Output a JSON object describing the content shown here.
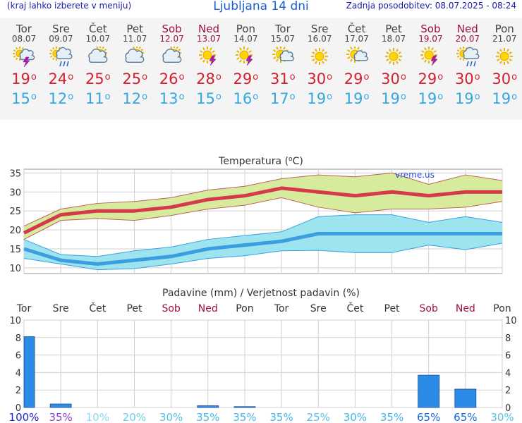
{
  "header": {
    "left_note": "(kraj lahko izberete v meniju)",
    "title": "Ljubljana 14 dni",
    "update_label": "Zadnja posodobitev: 08.07.2025 - 08:24"
  },
  "days": [
    {
      "name": "Tor",
      "date": "08.07",
      "icon": "sun-cloud-storm-icon",
      "tmax": "19",
      "tmin": "15",
      "weekend": false
    },
    {
      "name": "Sre",
      "date": "09.07",
      "icon": "sun-cloud-rain-icon",
      "tmax": "24",
      "tmin": "12",
      "weekend": false
    },
    {
      "name": "Čet",
      "date": "10.07",
      "icon": "sun-cloud-icon",
      "tmax": "25",
      "tmin": "11",
      "weekend": false
    },
    {
      "name": "Pet",
      "date": "11.07",
      "icon": "sun-cloud-icon",
      "tmax": "25",
      "tmin": "12",
      "weekend": false
    },
    {
      "name": "Sob",
      "date": "12.07",
      "icon": "sun-cloud-icon",
      "tmax": "26",
      "tmin": "13",
      "weekend": true
    },
    {
      "name": "Ned",
      "date": "13.07",
      "icon": "sun-storm-icon",
      "tmax": "28",
      "tmin": "15",
      "weekend": true
    },
    {
      "name": "Pon",
      "date": "14.07",
      "icon": "sun-storm-icon",
      "tmax": "29",
      "tmin": "16",
      "weekend": false
    },
    {
      "name": "Tor",
      "date": "15.07",
      "icon": "sun-small-cloud-icon",
      "tmax": "31",
      "tmin": "17",
      "weekend": false
    },
    {
      "name": "Sre",
      "date": "16.07",
      "icon": "sun-icon",
      "tmax": "30",
      "tmin": "19",
      "weekend": false
    },
    {
      "name": "Čet",
      "date": "17.07",
      "icon": "sun-small-cloud-icon",
      "tmax": "29",
      "tmin": "19",
      "weekend": false
    },
    {
      "name": "Pet",
      "date": "18.07",
      "icon": "sun-icon",
      "tmax": "30",
      "tmin": "19",
      "weekend": false
    },
    {
      "name": "Sob",
      "date": "19.07",
      "icon": "sun-storm-icon",
      "tmax": "29",
      "tmin": "19",
      "weekend": true
    },
    {
      "name": "Ned",
      "date": "20.07",
      "icon": "sun-cloud-rain-icon",
      "tmax": "30",
      "tmin": "19",
      "weekend": true
    },
    {
      "name": "Pon",
      "date": "21.07",
      "icon": "sun-icon",
      "tmax": "30",
      "tmin": "19",
      "weekend": false
    }
  ],
  "colors": {
    "max_line": "#d43a4a",
    "min_line": "#3a9ee0",
    "max_band": "#d6ec9c",
    "min_band": "#9ee4ee",
    "bar": "#2d8be8",
    "weekend": "#a0103c"
  },
  "chart_data": [
    {
      "type": "line",
      "title": "Temperatura (°C)",
      "watermark": "vreme.us",
      "x": [
        "Tor",
        "Sre",
        "Čet",
        "Pet",
        "Sob",
        "Ned",
        "Pon",
        "Tor",
        "Sre",
        "Čet",
        "Pet",
        "Sob",
        "Ned",
        "Pon"
      ],
      "ylim": [
        8.5,
        36
      ],
      "yticks": [
        10,
        15,
        20,
        25,
        30,
        35
      ],
      "grid": true,
      "series": [
        {
          "values": [
            19.2,
            24,
            25,
            25,
            26,
            28,
            29,
            31,
            30,
            29,
            30,
            29,
            30,
            30
          ]
        },
        {
          "values": [
            15,
            12,
            11,
            12,
            13,
            15,
            16,
            17,
            19,
            19,
            19,
            19,
            19,
            19
          ]
        }
      ],
      "bands": [
        {
          "upper": [
            21,
            25.5,
            27,
            27.5,
            28.5,
            30.5,
            31.5,
            33.5,
            34.5,
            34,
            35,
            32,
            34.5,
            33
          ],
          "lower": [
            17.5,
            22.5,
            23,
            22.5,
            23.8,
            25.5,
            26.5,
            28.5,
            26,
            24.5,
            25.5,
            25.5,
            26,
            27.5
          ]
        },
        {
          "upper": [
            17.5,
            13.5,
            13,
            14.5,
            15.5,
            17.5,
            18.5,
            19.5,
            23.5,
            24,
            24,
            22,
            23.5,
            22
          ],
          "lower": [
            12.5,
            11,
            9.5,
            9.8,
            11,
            12.5,
            13.2,
            14.5,
            14.6,
            14,
            14,
            16,
            14.8,
            16.5
          ]
        }
      ]
    },
    {
      "type": "bar",
      "title": "Padavine (mm) / Verjetnost padavin (%)",
      "categories": [
        "Tor",
        "Sre",
        "Čet",
        "Pet",
        "Sob",
        "Ned",
        "Pon",
        "Tor",
        "Sre",
        "Čet",
        "Pet",
        "Sob",
        "Ned",
        "Pon"
      ],
      "values": [
        8.1,
        0.4,
        0,
        0,
        0,
        0.2,
        0.1,
        0,
        0,
        0,
        0,
        3.7,
        2.1,
        0
      ],
      "ylim": [
        0,
        10
      ],
      "yticks": [
        0,
        2,
        4,
        6,
        8,
        10
      ],
      "probability": [
        "100%",
        "35%",
        "10%",
        "20%",
        "30%",
        "35%",
        "35%",
        "35%",
        "25%",
        "30%",
        "35%",
        "65%",
        "65%",
        "30%"
      ],
      "probability_colors": [
        "#2222cc",
        "#8a44cc",
        "#8ad8f0",
        "#6ecde8",
        "#55c1e4",
        "#44b6e2",
        "#44b6e2",
        "#44b6e2",
        "#55c1e4",
        "#44b6e2",
        "#44b6e2",
        "#1a66dd",
        "#1a66dd",
        "#55c1e4"
      ]
    }
  ]
}
